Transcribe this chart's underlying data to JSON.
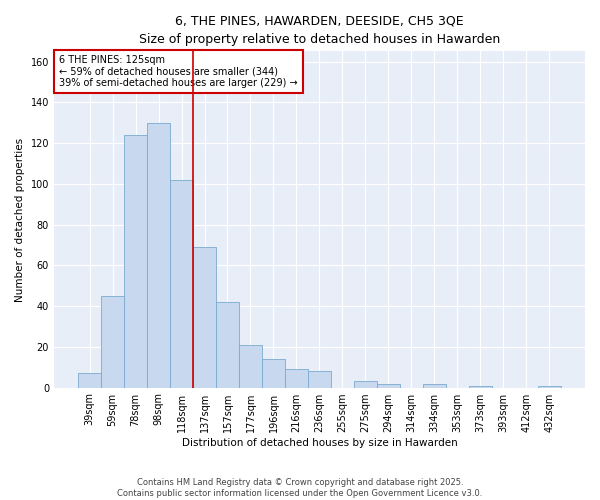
{
  "title": "6, THE PINES, HAWARDEN, DEESIDE, CH5 3QE",
  "subtitle": "Size of property relative to detached houses in Hawarden",
  "xlabel": "Distribution of detached houses by size in Hawarden",
  "ylabel": "Number of detached properties",
  "categories": [
    "39sqm",
    "59sqm",
    "78sqm",
    "98sqm",
    "118sqm",
    "137sqm",
    "157sqm",
    "177sqm",
    "196sqm",
    "216sqm",
    "236sqm",
    "255sqm",
    "275sqm",
    "294sqm",
    "314sqm",
    "334sqm",
    "353sqm",
    "373sqm",
    "393sqm",
    "412sqm",
    "432sqm"
  ],
  "values": [
    7,
    45,
    124,
    130,
    102,
    69,
    42,
    21,
    14,
    9,
    8,
    0,
    3,
    2,
    0,
    2,
    0,
    1,
    0,
    0,
    1
  ],
  "bar_color": "#c8d8ee",
  "bar_edge_color": "#7aaad0",
  "vline_x_index": 4.5,
  "vline_color": "#cc0000",
  "annotation_text": "6 THE PINES: 125sqm\n← 59% of detached houses are smaller (344)\n39% of semi-detached houses are larger (229) →",
  "annotation_box_color": "#ffffff",
  "annotation_box_edge": "#cc0000",
  "ylim": [
    0,
    165
  ],
  "yticks": [
    0,
    20,
    40,
    60,
    80,
    100,
    120,
    140,
    160
  ],
  "bg_color": "#e8eef8",
  "grid_color": "#ffffff",
  "footer": "Contains HM Land Registry data © Crown copyright and database right 2025.\nContains public sector information licensed under the Open Government Licence v3.0.",
  "title_fontsize": 9,
  "subtitle_fontsize": 8,
  "axis_label_fontsize": 7.5,
  "tick_fontsize": 7,
  "annotation_fontsize": 7,
  "footer_fontsize": 6
}
